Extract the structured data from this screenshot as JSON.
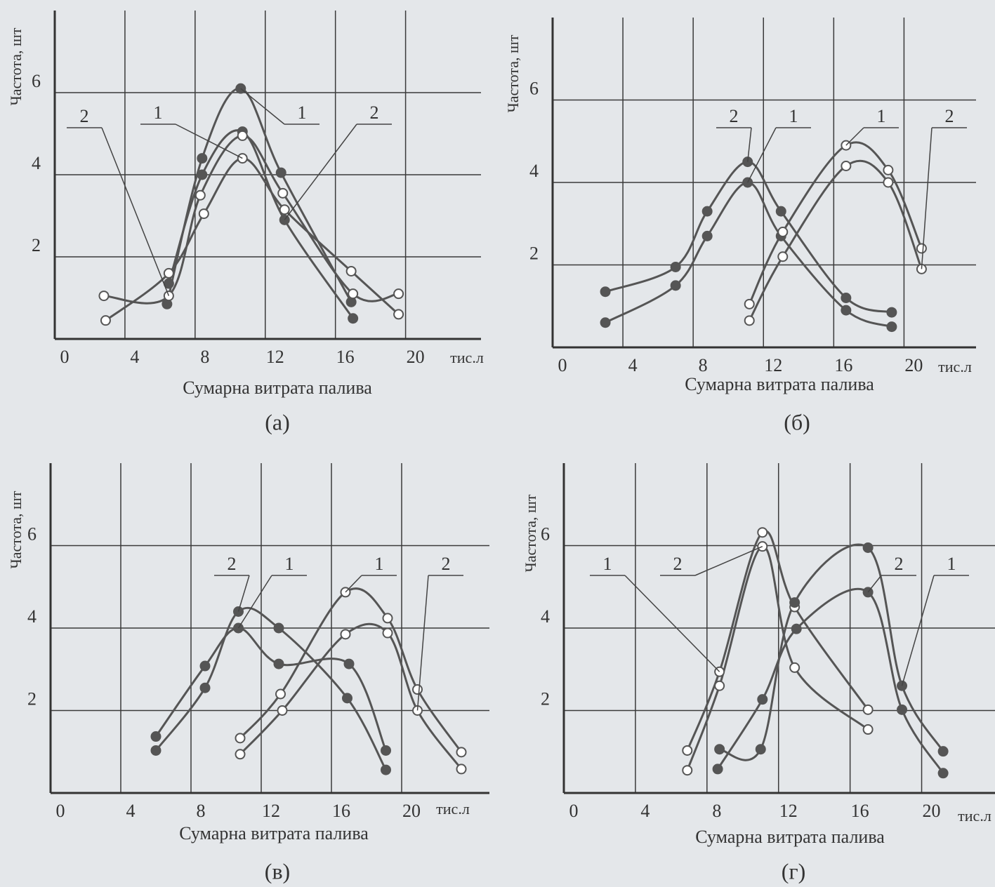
{
  "chart_data": [
    {
      "type": "line",
      "caption": "(а)",
      "xlabel": "Сумарна витрата палива",
      "ylabel": "Частота, шт",
      "xunit": "тис.л",
      "xlim": [
        0,
        24.3
      ],
      "ylim": [
        0,
        8
      ],
      "xticks": [
        0,
        4,
        8,
        12,
        16,
        20
      ],
      "yticks": [
        2,
        4,
        6
      ],
      "grid": true,
      "series": [
        {
          "name": "1",
          "marker": "filled",
          "color": "#555555",
          "x": [
            6.4,
            8.4,
            10.6,
            12.9,
            16.9
          ],
          "values": [
            0.85,
            4.4,
            6.1,
            4.05,
            0.9
          ]
        },
        {
          "name": "2",
          "marker": "filled",
          "color": "#555555",
          "x": [
            6.5,
            8.4,
            10.7,
            13.1,
            17.0
          ],
          "values": [
            1.35,
            4.0,
            5.05,
            2.9,
            0.5
          ]
        },
        {
          "name": "2",
          "marker": "open",
          "color": "#555555",
          "x": [
            2.8,
            6.5,
            8.3,
            10.7,
            13.0,
            17.0,
            19.6
          ],
          "values": [
            1.05,
            1.05,
            3.5,
            4.95,
            3.55,
            1.1,
            1.1
          ]
        },
        {
          "name": "1",
          "marker": "open",
          "color": "#555555",
          "x": [
            2.9,
            6.5,
            8.5,
            10.7,
            13.1,
            16.9,
            19.6
          ],
          "values": [
            0.45,
            1.6,
            3.05,
            4.4,
            3.15,
            1.65,
            0.6
          ]
        }
      ]
    },
    {
      "type": "line",
      "caption": "(б)",
      "xlabel": "Сумарна витрата палива",
      "ylabel": "Частота, шт",
      "xunit": "тис.л",
      "xlim": [
        0,
        24.1
      ],
      "ylim": [
        0,
        8
      ],
      "xticks": [
        0,
        4,
        8,
        12,
        16,
        20
      ],
      "yticks": [
        2,
        4,
        6
      ],
      "grid": true,
      "series": [
        {
          "name": "2",
          "marker": "filled",
          "color": "#555555",
          "x": [
            3.0,
            7.0,
            8.8,
            11.1,
            13.0,
            16.7,
            19.3
          ],
          "values": [
            1.35,
            1.95,
            3.3,
            4.5,
            3.3,
            1.2,
            0.85
          ]
        },
        {
          "name": "1",
          "marker": "filled",
          "color": "#555555",
          "x": [
            3.0,
            7.0,
            8.8,
            11.1,
            13.0,
            16.7,
            19.3
          ],
          "values": [
            0.6,
            1.5,
            2.7,
            4.0,
            2.7,
            0.9,
            0.5
          ]
        },
        {
          "name": "1",
          "marker": "open",
          "color": "#555555",
          "x": [
            11.2,
            13.1,
            16.7,
            19.1,
            21.0
          ],
          "values": [
            1.05,
            2.8,
            4.9,
            4.3,
            2.4
          ]
        },
        {
          "name": "2",
          "marker": "open",
          "color": "#555555",
          "x": [
            11.2,
            13.1,
            16.7,
            19.1,
            21.0
          ],
          "values": [
            0.65,
            2.2,
            4.4,
            4.0,
            1.9
          ]
        }
      ]
    },
    {
      "type": "line",
      "caption": "(в)",
      "xlabel": "Сумарна витрата палива",
      "ylabel": "Частота, шт",
      "xunit": "тис.л",
      "xlim": [
        0,
        25
      ],
      "ylim": [
        0,
        8
      ],
      "xticks": [
        0,
        4,
        8,
        12,
        16,
        20
      ],
      "yticks": [
        2,
        4,
        6
      ],
      "grid": true,
      "series": [
        {
          "name": "1",
          "marker": "filled",
          "color": "#555555",
          "x": [
            6.0,
            8.8,
            10.7,
            13.0,
            17.0,
            19.1
          ],
          "values": [
            1.37,
            3.08,
            4.0,
            3.13,
            3.13,
            1.03
          ]
        },
        {
          "name": "2",
          "marker": "filled",
          "color": "#555555",
          "x": [
            6.0,
            8.8,
            10.7,
            13.0,
            16.9,
            19.1
          ],
          "values": [
            1.03,
            2.55,
            4.4,
            4.0,
            2.3,
            0.56
          ]
        },
        {
          "name": "1",
          "marker": "open",
          "color": "#555555",
          "x": [
            10.8,
            13.1,
            16.8,
            19.2,
            20.9,
            23.4
          ],
          "values": [
            1.33,
            2.4,
            4.87,
            4.24,
            2.51,
            0.99
          ]
        },
        {
          "name": "2",
          "marker": "open",
          "color": "#555555",
          "x": [
            10.8,
            13.2,
            16.8,
            19.2,
            20.9,
            23.4
          ],
          "values": [
            0.94,
            2.0,
            3.85,
            3.88,
            2.0,
            0.58
          ]
        }
      ]
    },
    {
      "type": "line",
      "caption": "(г)",
      "xlabel": "Сумарна витрата палива",
      "ylabel": "Частота, шт",
      "xunit": "тис.л",
      "xlim": [
        0,
        24.1
      ],
      "ylim": [
        0,
        8
      ],
      "xticks": [
        0,
        4,
        8,
        12,
        16,
        20
      ],
      "yticks": [
        2,
        4,
        6
      ],
      "grid": true,
      "series": [
        {
          "name": "1",
          "marker": "open",
          "color": "#555555",
          "x": [
            6.9,
            8.7,
            11.1,
            12.9,
            17.0
          ],
          "values": [
            1.03,
            2.94,
            6.32,
            4.51,
            2.02
          ]
        },
        {
          "name": "2",
          "marker": "open",
          "color": "#555555",
          "x": [
            6.9,
            8.7,
            11.1,
            12.9,
            17.0
          ],
          "values": [
            0.55,
            2.6,
            5.98,
            3.04,
            1.54
          ]
        },
        {
          "name": "1",
          "marker": "filled",
          "color": "#555555",
          "x": [
            8.7,
            11.0,
            12.9,
            17.0,
            18.9,
            21.2
          ],
          "values": [
            1.06,
            1.06,
            4.62,
            5.95,
            2.6,
            1.01
          ]
        },
        {
          "name": "2",
          "marker": "filled",
          "color": "#555555",
          "x": [
            8.6,
            11.1,
            13.0,
            17.0,
            18.9,
            21.2
          ],
          "values": [
            0.58,
            2.27,
            3.98,
            4.87,
            2.02,
            0.48
          ]
        }
      ]
    }
  ]
}
